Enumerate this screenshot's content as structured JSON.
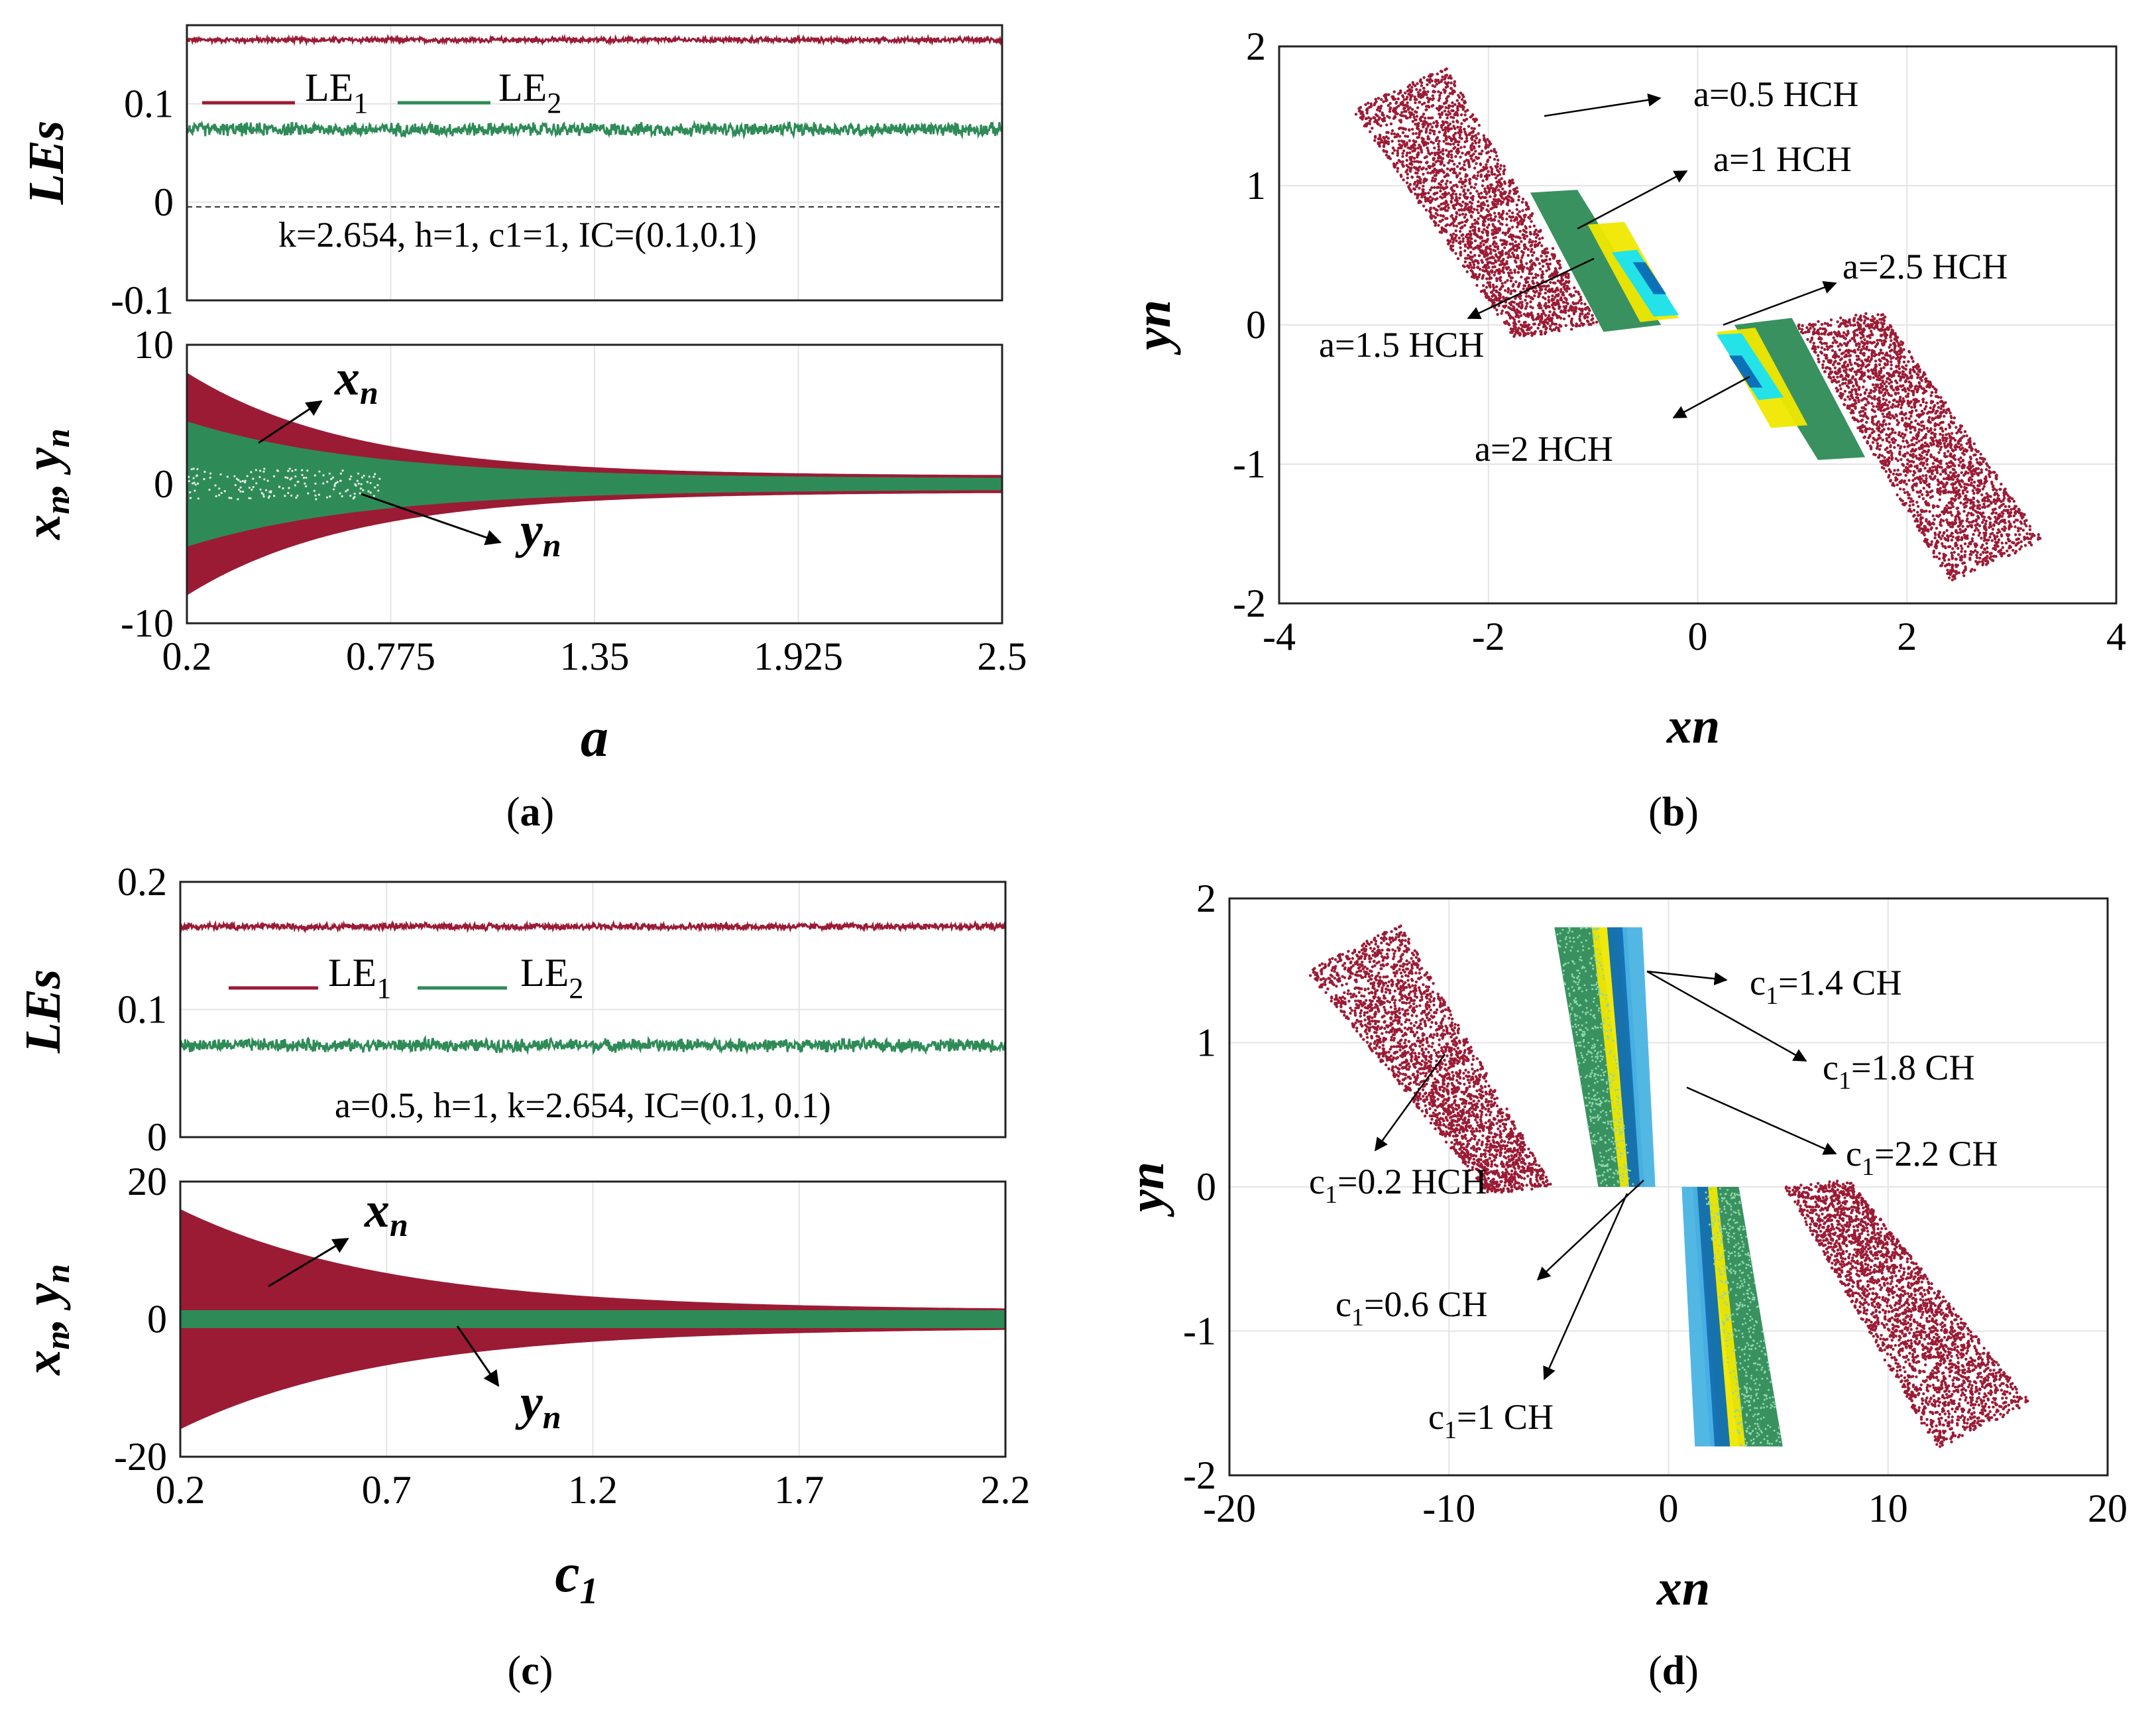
{
  "colors": {
    "maroon": "#9b1b35",
    "green": "#2e8b57",
    "yellow": "#f0e800",
    "cyan": "#17e3f4",
    "blue": "#0b6bb5",
    "lightblue": "#4ab3e2",
    "grid": "#e4e4e4"
  },
  "chart_data": [
    {
      "id": "a-les",
      "type": "line",
      "ylabel": "LEs",
      "xlim": [
        0.2,
        2.5
      ],
      "ylim": [
        -0.1,
        0.18
      ],
      "yticks": [
        "0.1",
        "0",
        "-0.1"
      ],
      "ytick_values": [
        0.1,
        0,
        -0.1
      ],
      "series": [
        {
          "name": "LE1",
          "legend": "LE",
          "sub": "1",
          "mean": 0.165,
          "noise": 0.003,
          "color": "maroon"
        },
        {
          "name": "LE2",
          "legend": "LE",
          "sub": "2",
          "mean": 0.074,
          "noise": 0.008,
          "color": "green"
        }
      ],
      "annotation": "k=2.654, h=1, c1=1, IC=(0.1,0.1)"
    },
    {
      "id": "a-xy",
      "type": "area",
      "ylabel": "xn, yn",
      "xlabel": "a",
      "xlim": [
        0.2,
        2.5
      ],
      "ylim": [
        -10,
        10
      ],
      "xticks": [
        "0.2",
        "0.775",
        "1.35",
        "1.925",
        "2.5"
      ],
      "xtick_values": [
        0.2,
        0.775,
        1.35,
        1.925,
        2.5
      ],
      "yticks": [
        "10",
        "0",
        "-10"
      ],
      "ytick_values": [
        10,
        0,
        -10
      ],
      "series": [
        {
          "name": "xn",
          "envelope_start": 8,
          "envelope_end": 0.6,
          "color": "maroon"
        },
        {
          "name": "yn",
          "envelope_start": 4.5,
          "envelope_end": 0.4,
          "color": "green"
        }
      ],
      "arrow_labels": [
        {
          "var": "x",
          "sub": "n"
        },
        {
          "var": "y",
          "sub": "n"
        }
      ],
      "caption": "a"
    },
    {
      "id": "b",
      "type": "scatter",
      "xlabel": "xn",
      "ylabel": "yn",
      "xlim": [
        -4,
        4
      ],
      "ylim": [
        -2,
        2
      ],
      "xticks": [
        "-4",
        "-2",
        "0",
        "2",
        "4"
      ],
      "xtick_values": [
        -4,
        -2,
        0,
        2,
        4
      ],
      "yticks": [
        "2",
        "1",
        "0",
        "-1",
        "-2"
      ],
      "ytick_values": [
        2,
        1,
        0,
        -1,
        -2
      ],
      "labels": [
        "a=0.5  HCH",
        "a=1  HCH",
        "a=1.5  HCH",
        "a=2.5  HCH",
        "a=2  HCH"
      ],
      "caption": "b"
    },
    {
      "id": "c-les",
      "type": "line",
      "ylabel": "LEs",
      "xlim": [
        0.2,
        2.2
      ],
      "ylim": [
        0,
        0.2
      ],
      "yticks": [
        "0.2",
        "0.1",
        "0"
      ],
      "ytick_values": [
        0.2,
        0.1,
        0
      ],
      "series": [
        {
          "name": "LE1",
          "legend": "LE",
          "sub": "1",
          "mean": 0.165,
          "noise": 0.003,
          "color": "maroon"
        },
        {
          "name": "LE2",
          "legend": "LE",
          "sub": "2",
          "mean": 0.072,
          "noise": 0.006,
          "color": "green"
        }
      ],
      "annotation": "a=0.5, h=1, k=2.654, IC=(0.1, 0.1)"
    },
    {
      "id": "c-xy",
      "type": "area",
      "ylabel": "xn, yn",
      "xlabel": "c1",
      "xlim": [
        0.2,
        2.2
      ],
      "ylim": [
        -20,
        20
      ],
      "xticks": [
        "0.2",
        "0.7",
        "1.2",
        "1.7",
        "2.2"
      ],
      "xtick_values": [
        0.2,
        0.7,
        1.2,
        1.7,
        2.2
      ],
      "yticks": [
        "20",
        "0",
        "-20"
      ],
      "ytick_values": [
        20,
        0,
        -20
      ],
      "series": [
        {
          "name": "xn",
          "envelope_start": 16,
          "envelope_end": 1.3,
          "color": "maroon"
        },
        {
          "name": "yn",
          "envelope_start": 1.3,
          "envelope_end": 1.3,
          "color": "green"
        }
      ],
      "arrow_labels": [
        {
          "var": "x",
          "sub": "n"
        },
        {
          "var": "y",
          "sub": "n"
        }
      ],
      "caption": "c"
    },
    {
      "id": "d",
      "type": "scatter",
      "xlabel": "xn",
      "ylabel": "yn",
      "xlim": [
        -20,
        20
      ],
      "ylim": [
        -2,
        2
      ],
      "xticks": [
        "-20",
        "-10",
        "0",
        "10",
        "20"
      ],
      "xtick_values": [
        -20,
        -10,
        0,
        10,
        20
      ],
      "yticks": [
        "2",
        "1",
        "0",
        "-1",
        "-2"
      ],
      "ytick_values": [
        2,
        1,
        0,
        -1,
        -2
      ],
      "labels": [
        {
          "pre": "c",
          "sub": "1",
          "post": "=1.4   CH",
          "color": "blue"
        },
        {
          "pre": "c",
          "sub": "1",
          "post": "=1.8  CH",
          "color": "cyan"
        },
        {
          "pre": "c",
          "sub": "1",
          "post": "=2.2   CH",
          "color": "lightblue"
        },
        {
          "pre": "c",
          "sub": "1",
          "post": "=0.2   HCH",
          "color": "maroon"
        },
        {
          "pre": "c",
          "sub": "1",
          "post": "=0.6   CH",
          "color": "green"
        },
        {
          "pre": "c",
          "sub": "1",
          "post": "=1   CH",
          "color": "yellow"
        }
      ],
      "caption": "d"
    }
  ],
  "captions": {
    "a": {
      "open": "(",
      "letter": "a",
      "close": ")"
    },
    "b": {
      "open": "(",
      "letter": "b",
      "close": ")"
    },
    "c": {
      "open": "(",
      "letter": "c",
      "close": ")"
    },
    "d": {
      "open": "(",
      "letter": "d",
      "close": ")"
    }
  }
}
